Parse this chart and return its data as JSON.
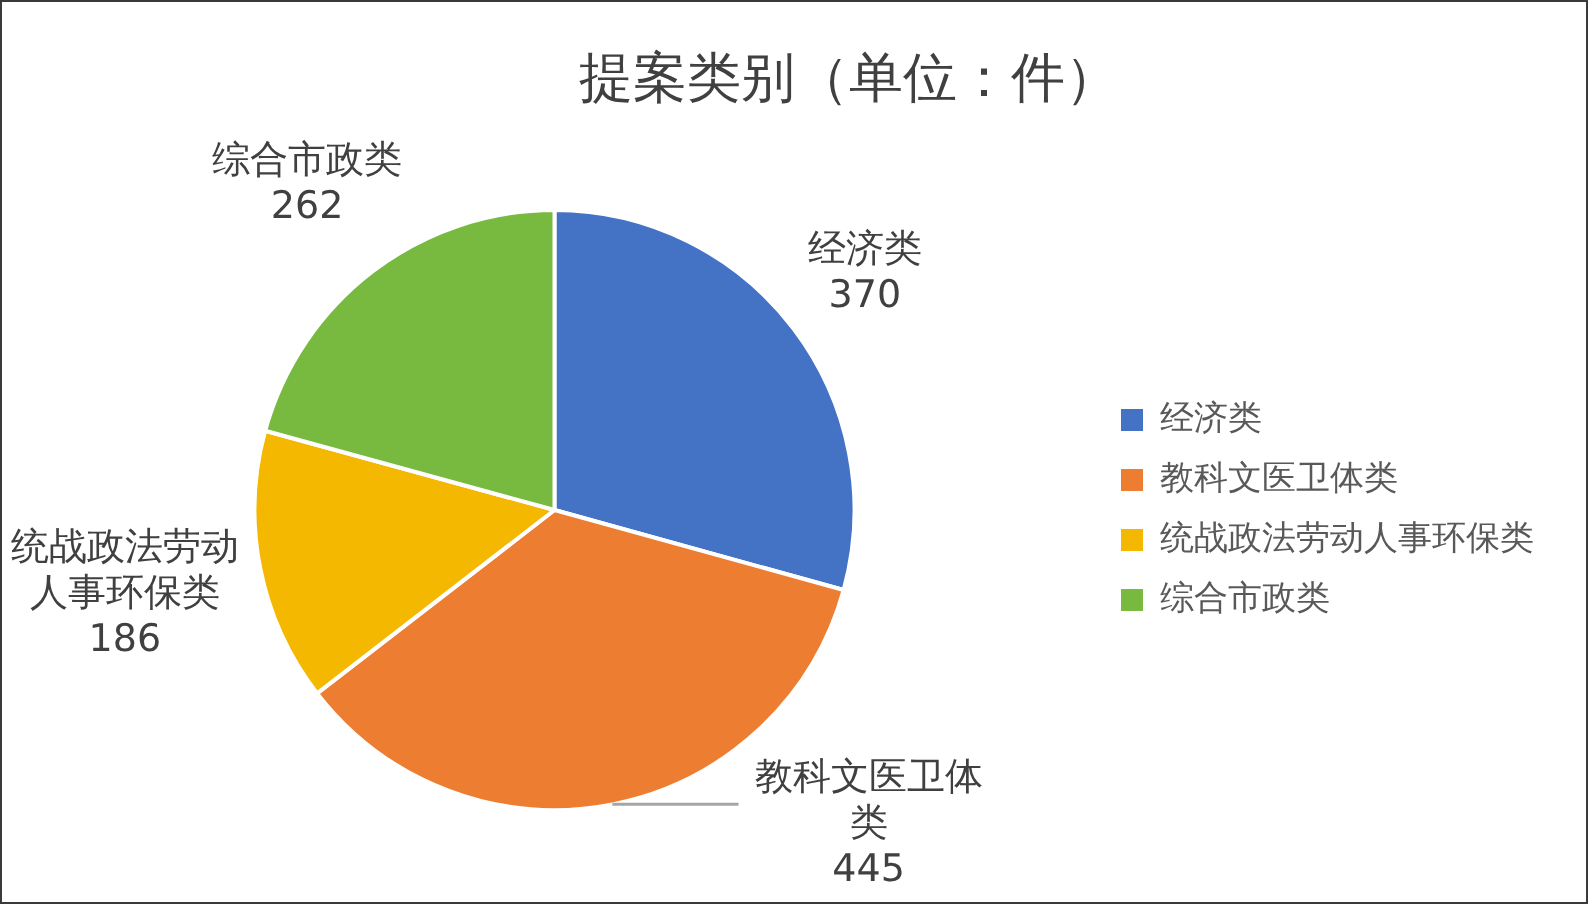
{
  "chart_data": {
    "type": "pie",
    "title": "提案类别（单位：件）",
    "categories": [
      "经济类",
      "教科文医卫体类",
      "统战政法劳动人事环保类",
      "综合市政类"
    ],
    "values": [
      370,
      445,
      186,
      262
    ],
    "colors": [
      "#4472c4",
      "#ed7d31",
      "#f5b800",
      "#78b940"
    ],
    "data_labels": true,
    "legend": "right"
  }
}
